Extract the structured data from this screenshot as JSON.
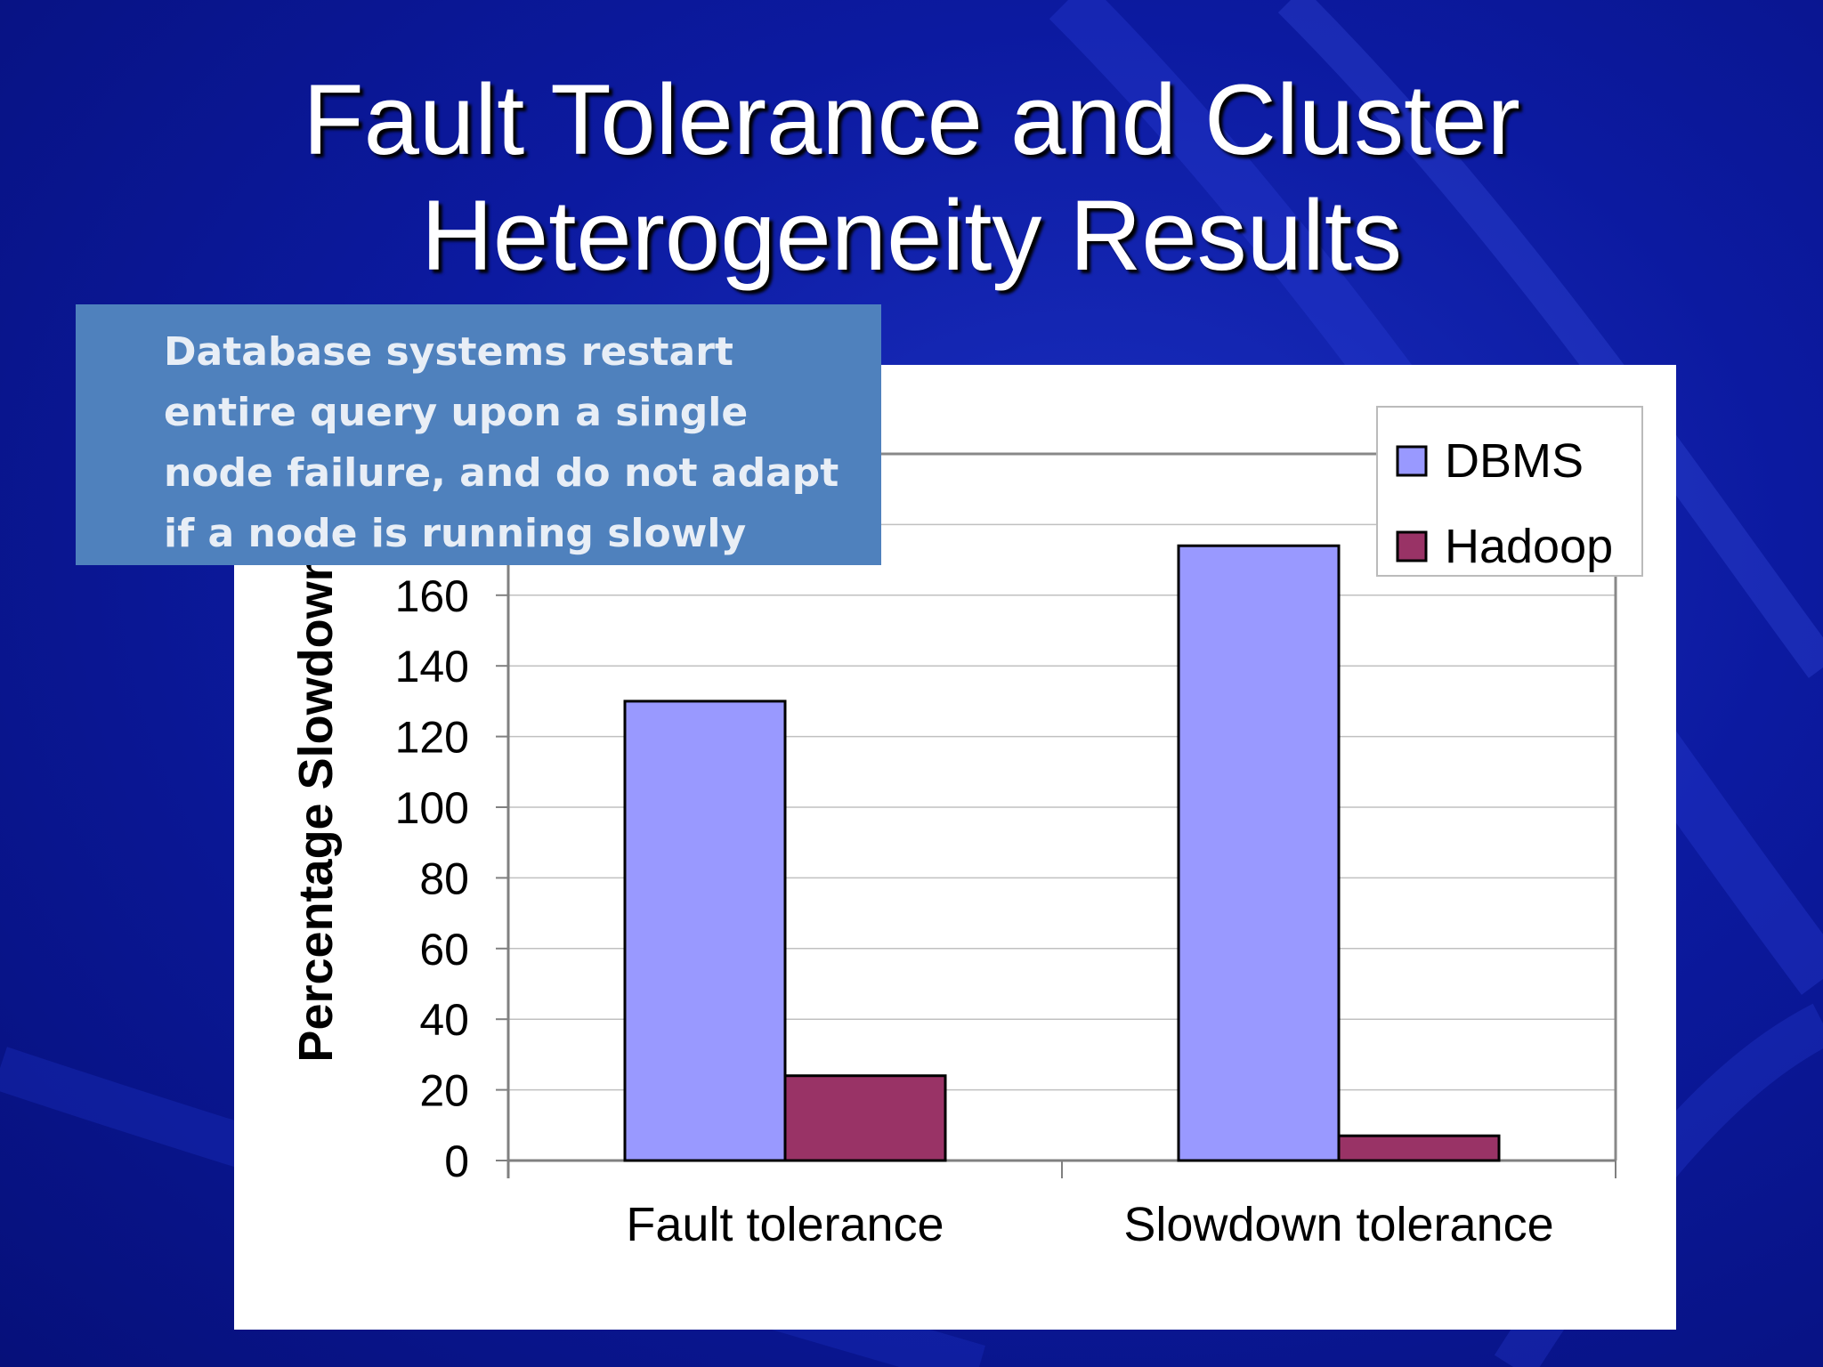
{
  "slide": {
    "title_line1": "Fault Tolerance and Cluster",
    "title_line2": "Heterogeneity Results",
    "callout_text": "Database systems restart entire query upon a single node failure, and do not adapt if a node is running slowly"
  },
  "colors": {
    "background": "#0c1aa0",
    "dbms": "#9999ff",
    "hadoop": "#993366",
    "callout": "#4f81bd"
  },
  "chart_data": {
    "type": "bar",
    "categories": [
      "Fault tolerance",
      "Slowdown tolerance"
    ],
    "series": [
      {
        "name": "DBMS",
        "values": [
          130,
          174
        ]
      },
      {
        "name": "Hadoop",
        "values": [
          24,
          7
        ]
      }
    ],
    "ylabel": "Percentage Slowdown",
    "yticks": [
      0,
      20,
      40,
      60,
      80,
      100,
      120,
      140,
      160
    ],
    "ylim": [
      0,
      200
    ],
    "grid": true,
    "legend": "top-right"
  }
}
